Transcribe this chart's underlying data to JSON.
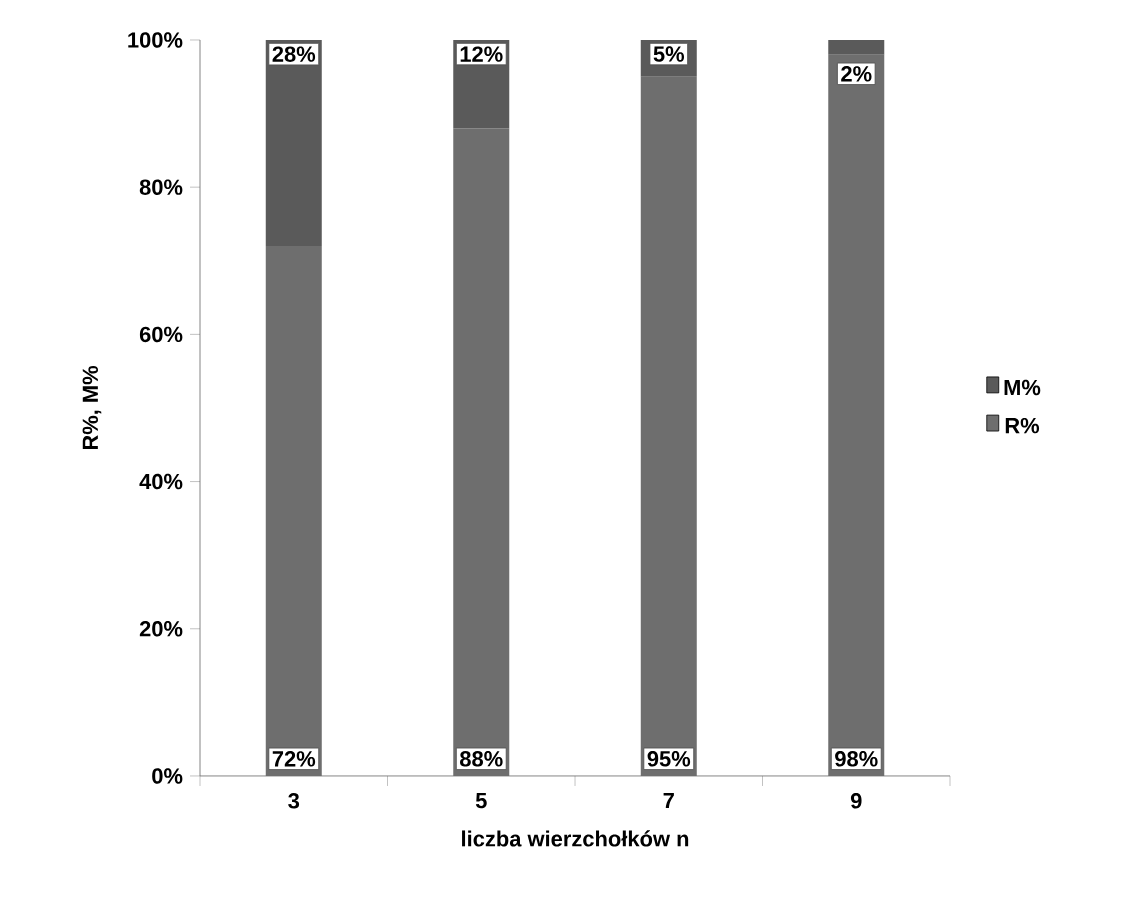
{
  "chart_data": {
    "type": "bar",
    "stacked": true,
    "categories": [
      "3",
      "5",
      "7",
      "9"
    ],
    "series": [
      {
        "name": "R%",
        "color": "#6e6e6e",
        "values": [
          72,
          88,
          95,
          98
        ],
        "value_labels": [
          "72%",
          "88%",
          "95%",
          "98%"
        ]
      },
      {
        "name": "M%",
        "color": "#5a5a5a",
        "values": [
          28,
          12,
          5,
          2
        ],
        "value_labels": [
          "28%",
          "12%",
          "5%",
          "2%"
        ]
      }
    ],
    "xlabel": "liczba wierzchołków n",
    "ylabel": "R%, M%",
    "ylim": [
      0,
      100
    ],
    "yticks": [
      {
        "value": 0,
        "label": "0%"
      },
      {
        "value": 20,
        "label": "20%"
      },
      {
        "value": 40,
        "label": "40%"
      },
      {
        "value": 60,
        "label": "60%"
      },
      {
        "value": 80,
        "label": "80%"
      },
      {
        "value": 100,
        "label": "100%"
      }
    ],
    "legend": "right",
    "grid": false
  }
}
